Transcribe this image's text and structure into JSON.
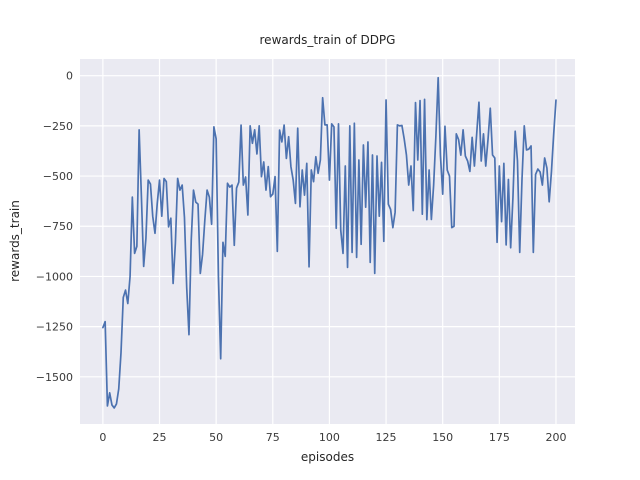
{
  "figure": {
    "title": "rewards_train of DDPG",
    "xlabel": "episodes",
    "ylabel": "rewards_train"
  },
  "chart_data": {
    "type": "line",
    "title": "rewards_train of DDPG",
    "xlabel": "episodes",
    "ylabel": "rewards_train",
    "grid": true,
    "legend": false,
    "x_start": 0,
    "x_step": 1,
    "x_ticks": [
      0,
      25,
      50,
      75,
      100,
      125,
      150,
      175,
      200
    ],
    "y_ticks": [
      0,
      -250,
      -500,
      -750,
      -1000,
      -1250,
      -1500
    ],
    "xlim": [
      -10.1,
      208.4
    ],
    "ylim": [
      -1735,
      83
    ],
    "style": {
      "line_color": "#4c72b0",
      "axes_bg": "#eaeaf2",
      "grid_color": "#ffffff",
      "fig_bg": "#ffffff",
      "text_color": "#262626"
    },
    "series": [
      {
        "name": "rewards_train",
        "values": [
          -1255,
          -1225,
          -1645,
          -1580,
          -1640,
          -1655,
          -1635,
          -1560,
          -1380,
          -1105,
          -1068,
          -1135,
          -1000,
          -605,
          -885,
          -850,
          -270,
          -600,
          -950,
          -810,
          -520,
          -540,
          -700,
          -785,
          -636,
          -520,
          -700,
          -512,
          -528,
          -753,
          -710,
          -1035,
          -835,
          -512,
          -570,
          -545,
          -705,
          -1055,
          -1290,
          -820,
          -570,
          -630,
          -640,
          -985,
          -890,
          -720,
          -570,
          -605,
          -740,
          -255,
          -315,
          -1000,
          -1410,
          -830,
          -900,
          -536,
          -555,
          -545,
          -845,
          -560,
          -530,
          -246,
          -545,
          -505,
          -694,
          -250,
          -337,
          -270,
          -390,
          -250,
          -503,
          -430,
          -570,
          -453,
          -603,
          -590,
          -503,
          -875,
          -271,
          -330,
          -246,
          -412,
          -304,
          -453,
          -520,
          -636,
          -262,
          -653,
          -470,
          -595,
          -437,
          -952,
          -470,
          -528,
          -404,
          -486,
          -420,
          -110,
          -245,
          -245,
          -520,
          -240,
          -255,
          -760,
          -240,
          -770,
          -885,
          -450,
          -955,
          -250,
          -880,
          -237,
          -905,
          -420,
          -840,
          -345,
          -655,
          -330,
          -930,
          -395,
          -985,
          -400,
          -700,
          -432,
          -825,
          -121,
          -640,
          -666,
          -757,
          -680,
          -245,
          -250,
          -248,
          -315,
          -396,
          -545,
          -450,
          -672,
          -134,
          -420,
          -124,
          -690,
          -118,
          -717,
          -470,
          -716,
          -545,
          -300,
          -10,
          -396,
          -590,
          -252,
          -470,
          -500,
          -757,
          -750,
          -290,
          -318,
          -396,
          -270,
          -400,
          -425,
          -477,
          -307,
          -450,
          -290,
          -132,
          -425,
          -290,
          -450,
          -318,
          -162,
          -395,
          -410,
          -830,
          -450,
          -727,
          -437,
          -843,
          -517,
          -857,
          -608,
          -277,
          -424,
          -880,
          -517,
          -250,
          -370,
          -366,
          -350,
          -880,
          -492,
          -465,
          -480,
          -545,
          -410,
          -460,
          -628,
          -478,
          -290,
          -122
        ]
      }
    ]
  }
}
